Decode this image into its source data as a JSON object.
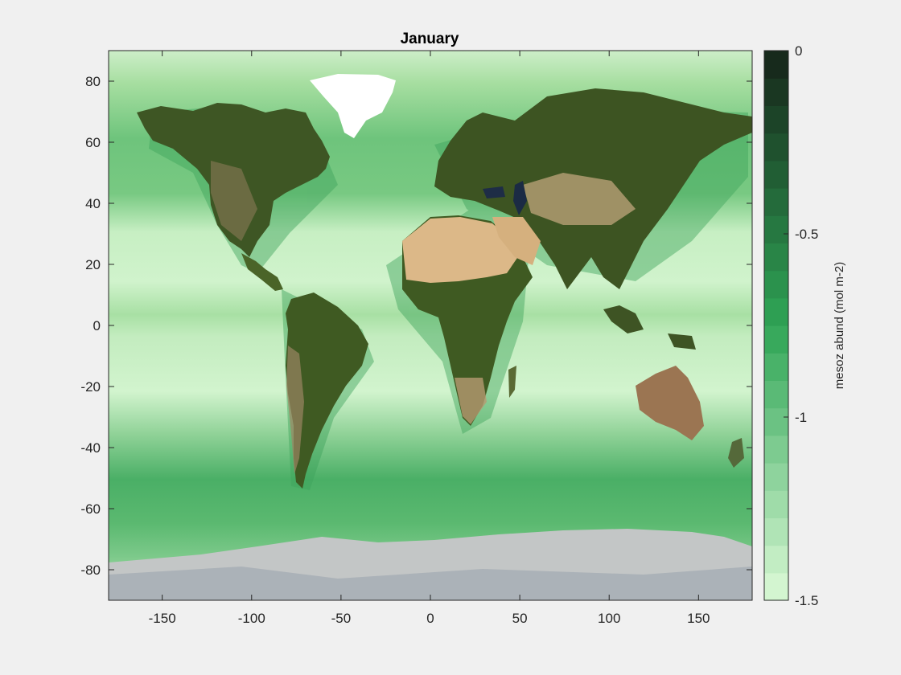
{
  "figure": {
    "title": "January",
    "background": "#f0f0f0"
  },
  "map": {
    "projection": "equirectangular",
    "lon_range": [
      -180,
      180
    ],
    "lat_range": [
      -90,
      90
    ],
    "ocean_variable": "mesoz abund (mol m-2)",
    "ocean_colormap_low": "#d3f5d0",
    "ocean_colormap_high": "#0e7a3f",
    "land_colors": {
      "forest": "#3f5a23",
      "desert": "#d9b486",
      "ice": "#ffffff",
      "antarctica": "#c4c8ca"
    }
  },
  "axes": {
    "xticks": [
      -150,
      -100,
      -50,
      0,
      50,
      100,
      150
    ],
    "yticks": [
      80,
      60,
      40,
      20,
      0,
      -20,
      -40,
      -60,
      -80
    ]
  },
  "colorbar": {
    "label": "mesoz abund (mol m-2)",
    "min": -1.5,
    "max": 0,
    "ticks": [
      "0",
      "-0.5",
      "-1",
      "-1.5"
    ],
    "tick_values": [
      0,
      -0.5,
      -1,
      -1.5
    ],
    "levels": 20,
    "color_low": "#d3f5d0",
    "color_mid": "#2fa556",
    "color_high": "#172a1c"
  }
}
